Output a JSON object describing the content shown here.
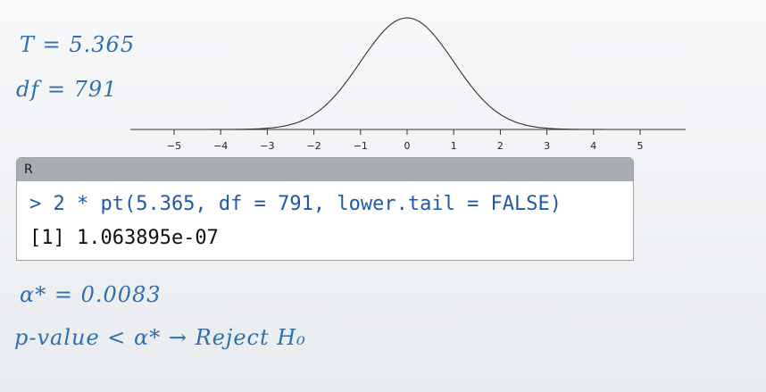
{
  "top_notes": {
    "t_stat": "T = 5.365",
    "df": "df = 791"
  },
  "chart_data": {
    "type": "line",
    "title": "",
    "xlabel": "",
    "ylabel": "",
    "x_ticks": [
      "−5",
      "−4",
      "−3",
      "−2",
      "−1",
      "0",
      "1",
      "2",
      "3",
      "4",
      "5"
    ],
    "xlim": [
      -5.5,
      6
    ],
    "series": [
      {
        "x": [
          -5,
          -4,
          -3,
          -2,
          -1,
          0,
          1,
          2,
          3,
          4,
          5
        ],
        "values": [
          1.5e-06,
          0.00013,
          0.0044,
          0.054,
          0.242,
          0.399,
          0.242,
          0.054,
          0.0044,
          0.00013,
          1.5e-06
        ]
      }
    ]
  },
  "r_console": {
    "title": "R",
    "command": "> 2 * pt(5.365, df = 791, lower.tail = FALSE)",
    "output": "[1] 1.063895e-07"
  },
  "bottom_notes": {
    "alpha_star": "α* = 0.0083",
    "conclusion": "p-value < α* → Reject H₀"
  },
  "colors": {
    "handwriting": "#2f6fb0",
    "console_input": "#1f5aa8",
    "titlebar": "#a8acb1"
  }
}
